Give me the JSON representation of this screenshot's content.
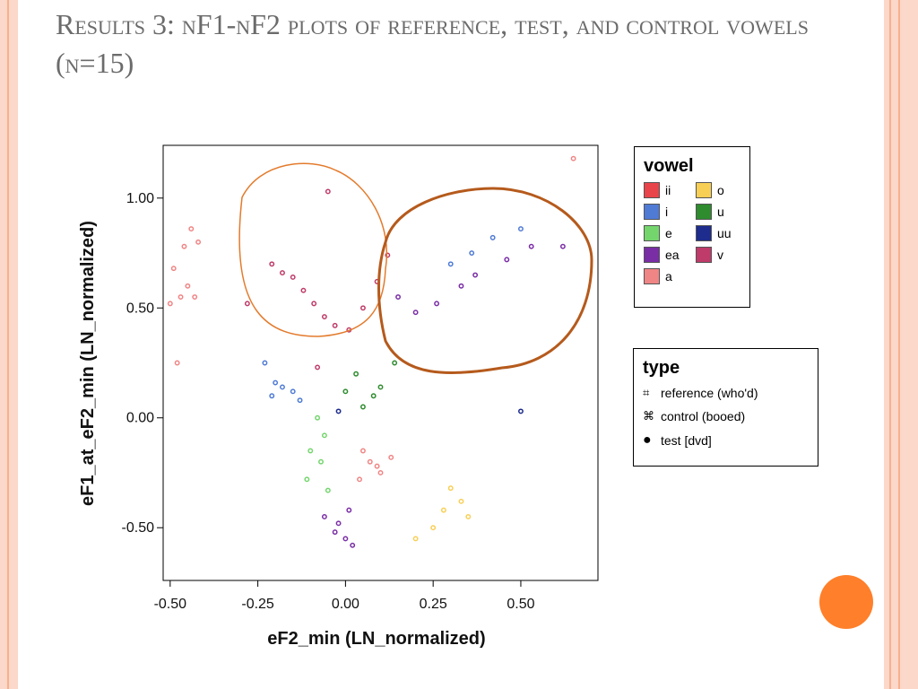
{
  "title": "Results 3: nF1-nF2 plots of reference, test, and control vowels (n=15)",
  "vowel_colors": {
    "ii": "#e9444a",
    "i": "#4f7bd5",
    "e": "#74d56d",
    "ea": "#7a2ea6",
    "a": "#f08585",
    "o": "#f7cf55",
    "u": "#2e8b2e",
    "uu": "#1d2c8d",
    "v": "#bf3b6a"
  },
  "legend_vowel": {
    "title": "vowel",
    "items": [
      {
        "label": "ii",
        "key": "ii"
      },
      {
        "label": "o",
        "key": "o"
      },
      {
        "label": "i",
        "key": "i"
      },
      {
        "label": "u",
        "key": "u"
      },
      {
        "label": "e",
        "key": "e"
      },
      {
        "label": "uu",
        "key": "uu"
      },
      {
        "label": "ea",
        "key": "ea"
      },
      {
        "label": "v",
        "key": "v"
      },
      {
        "label": "a",
        "key": "a"
      }
    ]
  },
  "legend_type": {
    "title": "type",
    "items": [
      "reference (who'd)",
      "control (booed)",
      "test [dvd]"
    ]
  },
  "chart_data": {
    "type": "scatter",
    "xlabel": "eF2_min (LN_normalized)",
    "ylabel": "eF1_at_eF2_min (LN_normalized)",
    "x_ticks": [
      "-0.50",
      "-0.25",
      "0.00",
      "0.25",
      "0.50"
    ],
    "y_ticks": [
      "1.00",
      "0.50",
      "0.00",
      "-0.50"
    ],
    "xlim": [
      -0.52,
      0.72
    ],
    "ylim": [
      -0.74,
      1.24
    ],
    "points": [
      [
        -0.44,
        0.86,
        "a"
      ],
      [
        -0.46,
        0.78,
        "a"
      ],
      [
        -0.42,
        0.8,
        "a"
      ],
      [
        -0.49,
        0.68,
        "a"
      ],
      [
        -0.45,
        0.6,
        "a"
      ],
      [
        -0.47,
        0.55,
        "a"
      ],
      [
        -0.5,
        0.52,
        "a"
      ],
      [
        -0.43,
        0.55,
        "a"
      ],
      [
        -0.48,
        0.25,
        "a"
      ],
      [
        -0.23,
        0.25,
        "i"
      ],
      [
        -0.2,
        0.16,
        "i"
      ],
      [
        -0.18,
        0.14,
        "i"
      ],
      [
        -0.15,
        0.12,
        "i"
      ],
      [
        -0.21,
        0.1,
        "i"
      ],
      [
        -0.13,
        0.08,
        "i"
      ],
      [
        -0.08,
        0.0,
        "e"
      ],
      [
        -0.06,
        -0.08,
        "e"
      ],
      [
        -0.1,
        -0.15,
        "e"
      ],
      [
        -0.07,
        -0.2,
        "e"
      ],
      [
        -0.11,
        -0.28,
        "e"
      ],
      [
        -0.05,
        -0.33,
        "e"
      ],
      [
        -0.06,
        -0.45,
        "ea"
      ],
      [
        -0.03,
        -0.52,
        "ea"
      ],
      [
        0.0,
        -0.55,
        "ea"
      ],
      [
        0.02,
        -0.58,
        "ea"
      ],
      [
        -0.02,
        -0.48,
        "ea"
      ],
      [
        0.01,
        -0.42,
        "ea"
      ],
      [
        0.05,
        -0.15,
        "a"
      ],
      [
        0.07,
        -0.2,
        "a"
      ],
      [
        0.1,
        -0.25,
        "a"
      ],
      [
        0.04,
        -0.28,
        "a"
      ],
      [
        0.09,
        -0.22,
        "a"
      ],
      [
        0.13,
        -0.18,
        "a"
      ],
      [
        0.3,
        -0.32,
        "o"
      ],
      [
        0.33,
        -0.38,
        "o"
      ],
      [
        0.35,
        -0.45,
        "o"
      ],
      [
        0.28,
        -0.42,
        "o"
      ],
      [
        0.25,
        -0.5,
        "o"
      ],
      [
        0.2,
        -0.55,
        "o"
      ],
      [
        0.05,
        0.05,
        "u"
      ],
      [
        0.08,
        0.1,
        "u"
      ],
      [
        0.1,
        0.14,
        "u"
      ],
      [
        0.03,
        0.2,
        "u"
      ],
      [
        0.14,
        0.25,
        "u"
      ],
      [
        0.0,
        0.12,
        "u"
      ],
      [
        0.15,
        0.55,
        "ea"
      ],
      [
        0.2,
        0.48,
        "ea"
      ],
      [
        0.26,
        0.52,
        "ea"
      ],
      [
        0.33,
        0.6,
        "ea"
      ],
      [
        0.37,
        0.65,
        "ea"
      ],
      [
        0.46,
        0.72,
        "ea"
      ],
      [
        0.53,
        0.78,
        "ea"
      ],
      [
        0.62,
        0.78,
        "ea"
      ],
      [
        0.3,
        0.7,
        "i"
      ],
      [
        0.36,
        0.75,
        "i"
      ],
      [
        0.42,
        0.82,
        "i"
      ],
      [
        0.5,
        0.86,
        "i"
      ],
      [
        -0.02,
        0.03,
        "uu"
      ],
      [
        0.5,
        0.03,
        "uu"
      ],
      [
        -0.28,
        0.52,
        "v"
      ],
      [
        -0.21,
        0.7,
        "v"
      ],
      [
        -0.18,
        0.66,
        "v"
      ],
      [
        -0.15,
        0.64,
        "v"
      ],
      [
        -0.12,
        0.58,
        "v"
      ],
      [
        -0.09,
        0.52,
        "v"
      ],
      [
        -0.06,
        0.46,
        "v"
      ],
      [
        -0.03,
        0.42,
        "v"
      ],
      [
        0.01,
        0.4,
        "v"
      ],
      [
        0.05,
        0.5,
        "v"
      ],
      [
        0.09,
        0.62,
        "v"
      ],
      [
        0.12,
        0.74,
        "v"
      ],
      [
        -0.08,
        0.23,
        "v"
      ],
      [
        -0.05,
        1.03,
        "v"
      ],
      [
        0.65,
        1.18,
        "a"
      ]
    ]
  }
}
